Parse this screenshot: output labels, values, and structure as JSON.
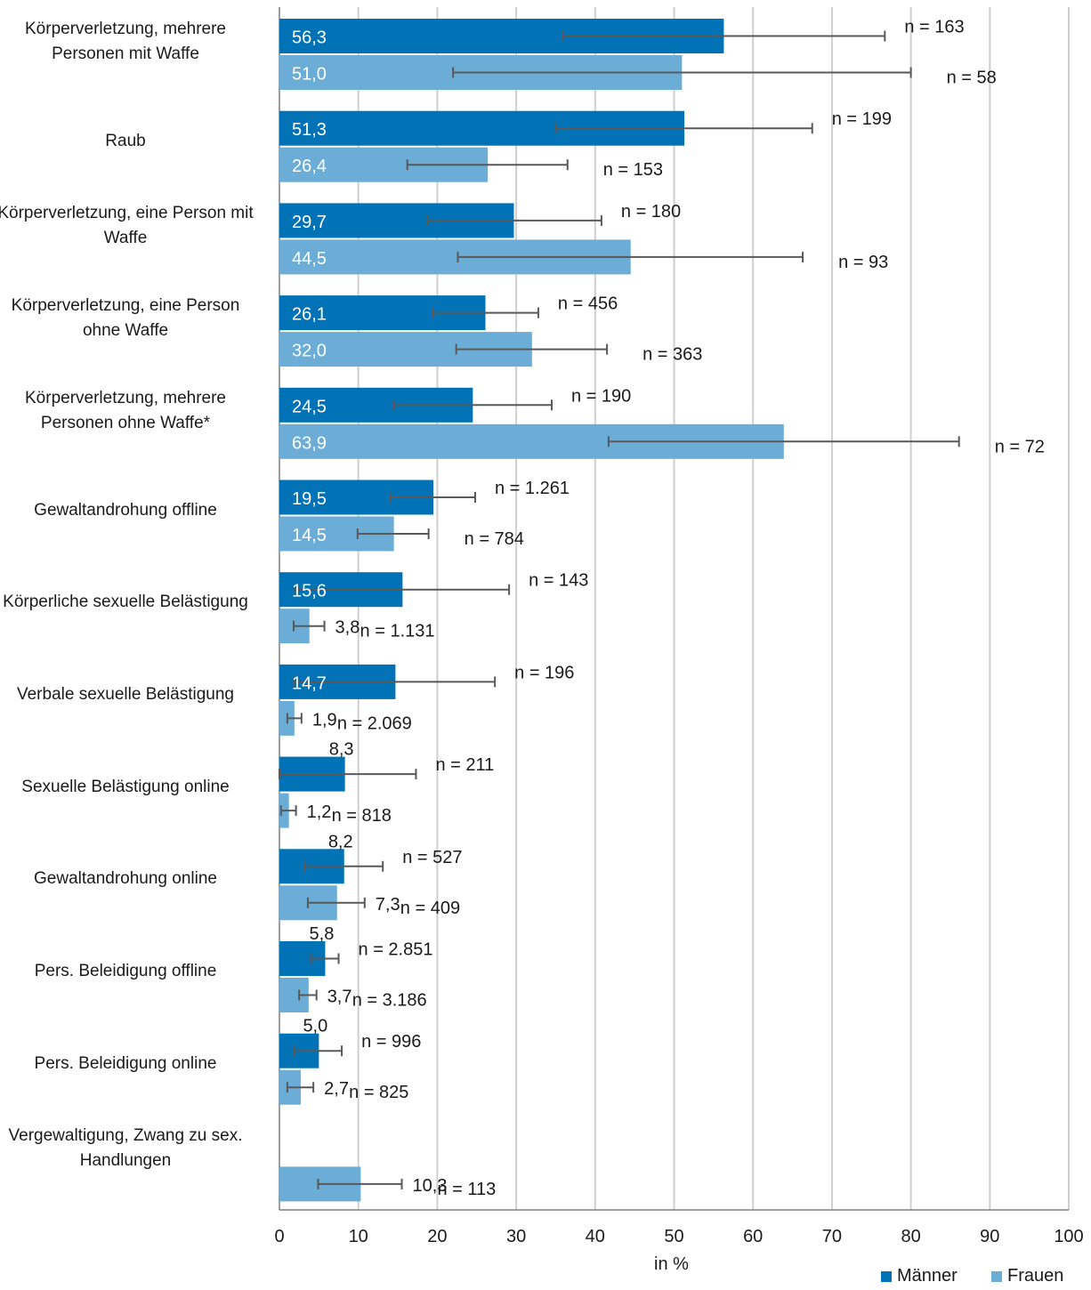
{
  "chart_data": {
    "type": "bar",
    "orientation": "horizontal",
    "xlabel": "in %",
    "xlim": [
      0,
      100
    ],
    "xticks": [
      0,
      10,
      20,
      30,
      40,
      50,
      60,
      70,
      80,
      90,
      100
    ],
    "grid": true,
    "legend_position": "bottom-right",
    "colors": {
      "maenner": "#0072b5",
      "frauen": "#6badd6",
      "errorbar": "#595959",
      "grid": "#cfcfcf"
    },
    "series": [
      {
        "name": "Männer",
        "key": "maenner"
      },
      {
        "name": "Frauen",
        "key": "frauen"
      }
    ],
    "categories": [
      {
        "label": "Körperverletzung, mehrere Personen mit Waffe",
        "maenner": {
          "value": 56.3,
          "label": "56,3",
          "ci": [
            35.9,
            76.7
          ],
          "n": "n = 163"
        },
        "frauen": {
          "value": 51.0,
          "label": "51,0",
          "ci": [
            22.0,
            80.0
          ],
          "n": "n = 58"
        }
      },
      {
        "label": "Raub",
        "maenner": {
          "value": 51.3,
          "label": "51,3",
          "ci": [
            35.0,
            67.5
          ],
          "n": "n = 199"
        },
        "frauen": {
          "value": 26.4,
          "label": "26,4",
          "ci": [
            16.2,
            36.5
          ],
          "n": "n = 153"
        }
      },
      {
        "label": "Körperverletzung, eine Person mit Waffe",
        "maenner": {
          "value": 29.7,
          "label": "29,7",
          "ci": [
            18.7,
            40.8
          ],
          "n": "n = 180"
        },
        "frauen": {
          "value": 44.5,
          "label": "44,5",
          "ci": [
            22.6,
            66.3
          ],
          "n": "n = 93"
        }
      },
      {
        "label": "Körperverletzung, eine Person ohne Waffe",
        "maenner": {
          "value": 26.1,
          "label": "26,1",
          "ci": [
            19.4,
            32.8
          ],
          "n": "n = 456"
        },
        "frauen": {
          "value": 32.0,
          "label": "32,0",
          "ci": [
            22.4,
            41.5
          ],
          "n": "n = 363"
        }
      },
      {
        "label": "Körperverletzung, mehrere Personen ohne Waffe*",
        "maenner": {
          "value": 24.5,
          "label": "24,5",
          "ci": [
            14.5,
            34.5
          ],
          "n": "n = 190"
        },
        "frauen": {
          "value": 63.9,
          "label": "63,9",
          "ci": [
            41.7,
            86.1
          ],
          "n": "n = 72"
        }
      },
      {
        "label": "Gewaltandrohung offline",
        "maenner": {
          "value": 19.5,
          "label": "19,5",
          "ci": [
            14.1,
            24.8
          ],
          "n": "n = 1.261"
        },
        "frauen": {
          "value": 14.5,
          "label": "14,5",
          "ci": [
            9.9,
            18.9
          ],
          "n": "n = 784"
        }
      },
      {
        "label": "Körperliche sexuelle Belästigung",
        "maenner": {
          "value": 15.6,
          "label": "15,6",
          "ci": [
            2.0,
            29.1
          ],
          "n": "n = 143"
        },
        "frauen": {
          "value": 3.8,
          "label": "3,8",
          "ci": [
            1.8,
            5.7
          ],
          "n": "n = 1.131"
        }
      },
      {
        "label": "Verbale sexuelle Belästigung",
        "maenner": {
          "value": 14.7,
          "label": "14,7",
          "ci": [
            1.8,
            27.3
          ],
          "n": "n = 196"
        },
        "frauen": {
          "value": 1.9,
          "label": "1,9",
          "ci": [
            1.0,
            2.8
          ],
          "n": "n = 2.069"
        }
      },
      {
        "label": "Sexuelle Belästigung online",
        "maenner": {
          "value": 8.3,
          "label": "8,3",
          "ci": [
            0.0,
            17.3
          ],
          "n": "n = 211"
        },
        "frauen": {
          "value": 1.2,
          "label": "1,2",
          "ci": [
            0.2,
            2.1
          ],
          "n": "n = 818"
        }
      },
      {
        "label": "Gewaltandrohung online",
        "maenner": {
          "value": 8.2,
          "label": "8,2",
          "ci": [
            3.2,
            13.1
          ],
          "n": "n = 527"
        },
        "frauen": {
          "value": 7.3,
          "label": "7,3",
          "ci": [
            3.6,
            10.8
          ],
          "n": "n = 409"
        }
      },
      {
        "label": "Pers. Beleidigung offline",
        "maenner": {
          "value": 5.8,
          "label": "5,8",
          "ci": [
            4.0,
            7.5
          ],
          "n": "n = 2.851"
        },
        "frauen": {
          "value": 3.7,
          "label": "3,7",
          "ci": [
            2.5,
            4.7
          ],
          "n": "n = 3.186"
        }
      },
      {
        "label": "Pers. Beleidigung online",
        "maenner": {
          "value": 5.0,
          "label": "5,0",
          "ci": [
            1.8,
            7.9
          ],
          "n": "n = 996"
        },
        "frauen": {
          "value": 2.7,
          "label": "2,7",
          "ci": [
            1.0,
            4.3
          ],
          "n": "n = 825"
        }
      },
      {
        "label": "Vergewaltigung, Zwang zu sex. Handlungen",
        "maenner": null,
        "frauen": {
          "value": 10.3,
          "label": "10,3",
          "ci": [
            4.9,
            15.5
          ],
          "n": "n = 113"
        }
      }
    ]
  }
}
